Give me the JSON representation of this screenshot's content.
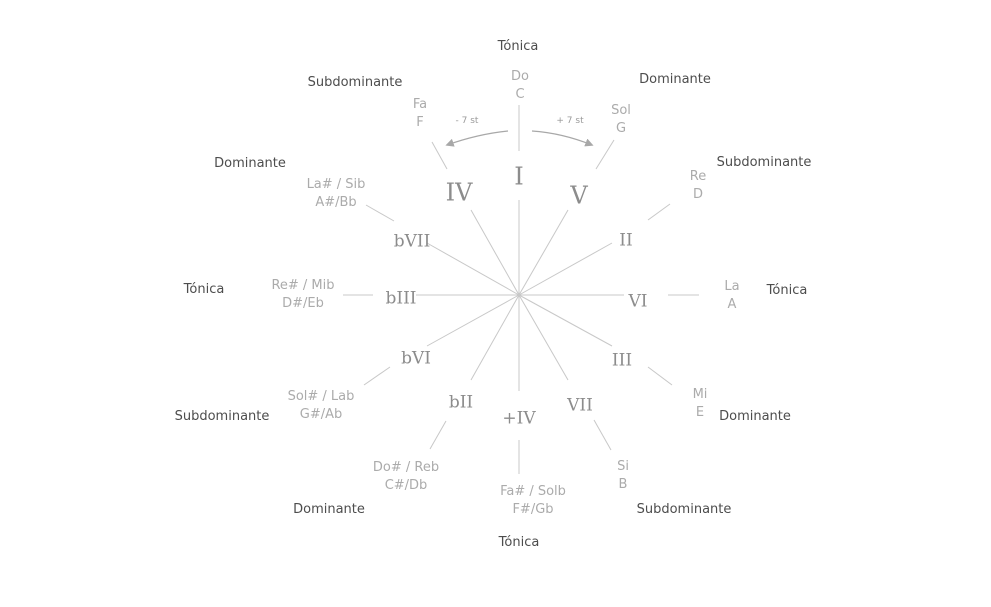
{
  "center_symbol": "",
  "degrees": [
    {
      "id": "I",
      "roman": "I",
      "note": [
        "Do",
        "C"
      ],
      "function": "Tónica"
    },
    {
      "id": "V",
      "roman": "V",
      "note": [
        "Sol",
        "G"
      ],
      "function": "Dominante"
    },
    {
      "id": "II",
      "roman": "II",
      "note": [
        "Re",
        "D"
      ],
      "function": "Subdominante"
    },
    {
      "id": "VI",
      "roman": "VI",
      "note": [
        "La",
        "A"
      ],
      "function": "Tónica"
    },
    {
      "id": "III",
      "roman": "III",
      "note": [
        "Mi",
        "E"
      ],
      "function": "Dominante"
    },
    {
      "id": "VII",
      "roman": "VII",
      "note": [
        "Si",
        "B"
      ],
      "function": "Subdominante"
    },
    {
      "id": "sIV",
      "roman": "+IV",
      "note": [
        "Fa# / Solb",
        "F#/Gb"
      ],
      "function": "Tónica"
    },
    {
      "id": "bII",
      "roman": "bII",
      "note": [
        "Do# / Reb",
        "C#/Db"
      ],
      "function": "Dominante"
    },
    {
      "id": "bVI",
      "roman": "bVI",
      "note": [
        "Sol# / Lab",
        "G#/Ab"
      ],
      "function": "Subdominante"
    },
    {
      "id": "bIII",
      "roman": "bIII",
      "note": [
        "Re# / Mib",
        "D#/Eb"
      ],
      "function": "Tónica"
    },
    {
      "id": "bVII",
      "roman": "bVII",
      "note": [
        "La# / Sib",
        "A#/Bb"
      ],
      "function": "Dominante"
    },
    {
      "id": "IV",
      "roman": "IV",
      "note": [
        "Fa",
        "F"
      ],
      "function": "Subdominante"
    }
  ],
  "arrows": {
    "left_label": "- 7 st",
    "right_label": "+ 7 st"
  },
  "colors": {
    "spoke": "#c8c8c8",
    "roman": "#8c8c8c",
    "note": "#ababab",
    "function": "#4d4d4d",
    "arrow": "#a8a8a8"
  }
}
